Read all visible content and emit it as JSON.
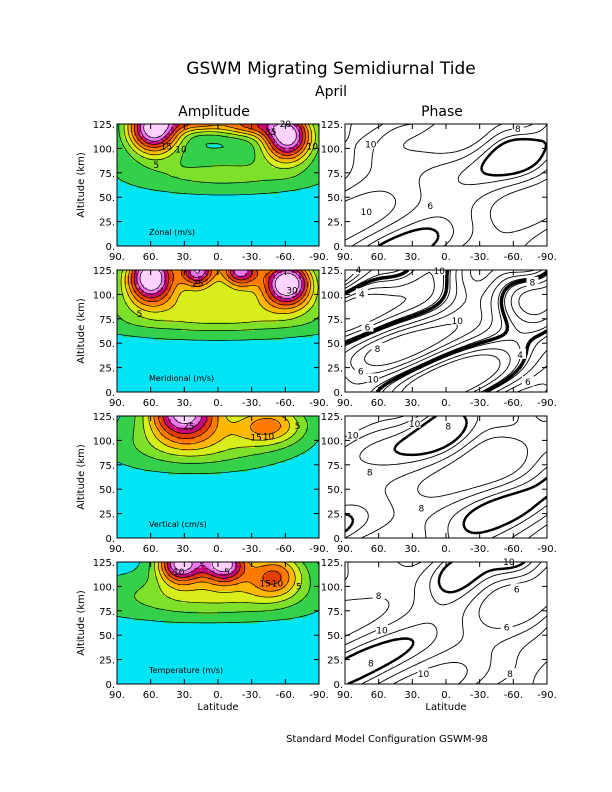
{
  "chart_data": {
    "type": "heatmap",
    "title": "GSWM Migrating Semidiurnal Tide",
    "subtitle": "April",
    "column_titles": [
      "Amplitude",
      "Phase"
    ],
    "footer": "Standard Model Configuration GSWM-98",
    "xlabel": "Latitude",
    "ylabel": "Altitude (km)",
    "xlim": [
      90,
      -90
    ],
    "ylim": [
      0,
      125
    ],
    "x_ticks": [
      "90.",
      "60.",
      "30.",
      "0.",
      "-30.",
      "-60.",
      "-90."
    ],
    "y_ticks": [
      "0.",
      "25.",
      "50.",
      "75.",
      "100.",
      "125."
    ],
    "background_color": "#00e5f5",
    "color_levels": [
      "#00e5f5",
      "#34d04a",
      "#7fe02a",
      "#d8ee1a",
      "#ffb800",
      "#ff7a00",
      "#e43d00",
      "#c8007a",
      "#ee78ee",
      "#ffd2ff"
    ],
    "panels": [
      {
        "label": "Zonal (m/s)",
        "amplitude_peaks": [
          {
            "lat": 57,
            "alt": 121,
            "sx": 16,
            "sy": 18,
            "a": 1.15
          },
          {
            "lat": -62,
            "alt": 112,
            "sx": 15,
            "sy": 17,
            "a": 1.1
          },
          {
            "lat": 18,
            "alt": 128,
            "sx": 18,
            "sy": 8,
            "a": 0.55
          },
          {
            "lat": -28,
            "alt": 125,
            "sx": 20,
            "sy": 9,
            "a": 0.62
          },
          {
            "lat": -5,
            "alt": 70,
            "sx": 55,
            "sy": 17,
            "a": 0.22
          }
        ],
        "amplitude_labels": [
          {
            "text": "15",
            "lat": 46,
            "alt": 102
          },
          {
            "text": "10",
            "lat": 33,
            "alt": 99
          },
          {
            "text": "5",
            "lat": 55,
            "alt": 83
          },
          {
            "text": "20",
            "lat": -60,
            "alt": 125
          },
          {
            "text": "35",
            "lat": -47,
            "alt": 117
          },
          {
            "text": "10",
            "lat": -84,
            "alt": 102
          }
        ],
        "phase_labels": [
          {
            "text": "8",
            "lat": -64,
            "alt": 120
          },
          {
            "text": "10",
            "lat": 67,
            "alt": 104
          },
          {
            "text": "10",
            "lat": 71,
            "alt": 35
          },
          {
            "text": "6",
            "lat": 14,
            "alt": 41
          }
        ]
      },
      {
        "label": "Meridional (m/s)",
        "amplitude_peaks": [
          {
            "lat": 60,
            "alt": 118,
            "sx": 15,
            "sy": 18,
            "a": 1.15
          },
          {
            "lat": 18,
            "alt": 125,
            "sx": 11,
            "sy": 12,
            "a": 0.95
          },
          {
            "lat": -20,
            "alt": 125,
            "sx": 12,
            "sy": 12,
            "a": 0.92
          },
          {
            "lat": -62,
            "alt": 112,
            "sx": 15,
            "sy": 16,
            "a": 1.15
          },
          {
            "lat": 0,
            "alt": 82,
            "sx": 70,
            "sy": 20,
            "a": 0.35
          }
        ],
        "amplitude_labels": [
          {
            "text": "25",
            "lat": 18,
            "alt": 111
          },
          {
            "text": "5",
            "lat": 70,
            "alt": 80
          },
          {
            "text": "30",
            "lat": -66,
            "alt": 104
          }
        ],
        "phase_labels": [
          {
            "text": "4",
            "lat": 78,
            "alt": 125
          },
          {
            "text": "10",
            "lat": 6,
            "alt": 124
          },
          {
            "text": "8",
            "lat": -77,
            "alt": 112
          },
          {
            "text": "4",
            "lat": 75,
            "alt": 100
          },
          {
            "text": "6",
            "lat": 70,
            "alt": 66
          },
          {
            "text": "10",
            "lat": -10,
            "alt": 73
          },
          {
            "text": "8",
            "lat": 61,
            "alt": 44
          },
          {
            "text": "6",
            "lat": -73,
            "alt": 10
          },
          {
            "text": "4",
            "lat": -66,
            "alt": 38
          },
          {
            "text": "10",
            "lat": 65,
            "alt": 13
          },
          {
            "text": "6",
            "lat": 76,
            "alt": 21
          }
        ]
      },
      {
        "label": "Vertical (cm/s)",
        "amplitude_peaks": [
          {
            "lat": 30,
            "alt": 128,
            "sx": 22,
            "sy": 18,
            "a": 1.05
          },
          {
            "lat": -45,
            "alt": 116,
            "sx": 22,
            "sy": 14,
            "a": 0.55
          },
          {
            "lat": 20,
            "alt": 95,
            "sx": 45,
            "sy": 16,
            "a": 0.3
          }
        ],
        "amplitude_labels": [
          {
            "text": "25",
            "lat": 26,
            "alt": 114
          },
          {
            "text": "15",
            "lat": -34,
            "alt": 103
          },
          {
            "text": "10",
            "lat": -45,
            "alt": 104
          },
          {
            "text": "5",
            "lat": -71,
            "alt": 115
          }
        ],
        "phase_labels": [
          {
            "text": "10",
            "lat": 28,
            "alt": 117
          },
          {
            "text": "8",
            "lat": -2,
            "alt": 114
          },
          {
            "text": "10",
            "lat": 83,
            "alt": 105
          },
          {
            "text": "8",
            "lat": 68,
            "alt": 67
          },
          {
            "text": "8",
            "lat": 22,
            "alt": 30
          }
        ]
      },
      {
        "label": "Temperature (m/s)",
        "amplitude_peaks": [
          {
            "lat": 33,
            "alt": 124,
            "sx": 14,
            "sy": 14,
            "a": 1.05
          },
          {
            "lat": -5,
            "alt": 124,
            "sx": 14,
            "sy": 14,
            "a": 1.05
          },
          {
            "lat": -50,
            "alt": 112,
            "sx": 18,
            "sy": 16,
            "a": 0.6
          },
          {
            "lat": 10,
            "alt": 90,
            "sx": 60,
            "sy": 16,
            "a": 0.3
          }
        ],
        "amplitude_labels": [
          {
            "text": "10",
            "lat": 35,
            "alt": 115
          },
          {
            "text": "5",
            "lat": -8,
            "alt": 115
          },
          {
            "text": "15",
            "lat": -42,
            "alt": 103
          },
          {
            "text": "10",
            "lat": -53,
            "alt": 103
          },
          {
            "text": "5",
            "lat": -72,
            "alt": 100
          }
        ],
        "phase_labels": [
          {
            "text": "10",
            "lat": -56,
            "alt": 125
          },
          {
            "text": "6",
            "lat": -63,
            "alt": 97
          },
          {
            "text": "8",
            "lat": 60,
            "alt": 90
          },
          {
            "text": "6",
            "lat": -54,
            "alt": 58
          },
          {
            "text": "10",
            "lat": 57,
            "alt": 55
          },
          {
            "text": "8",
            "lat": 67,
            "alt": 21
          },
          {
            "text": "10",
            "lat": 20,
            "alt": 10
          },
          {
            "text": "8",
            "lat": -57,
            "alt": 10
          }
        ]
      }
    ]
  }
}
